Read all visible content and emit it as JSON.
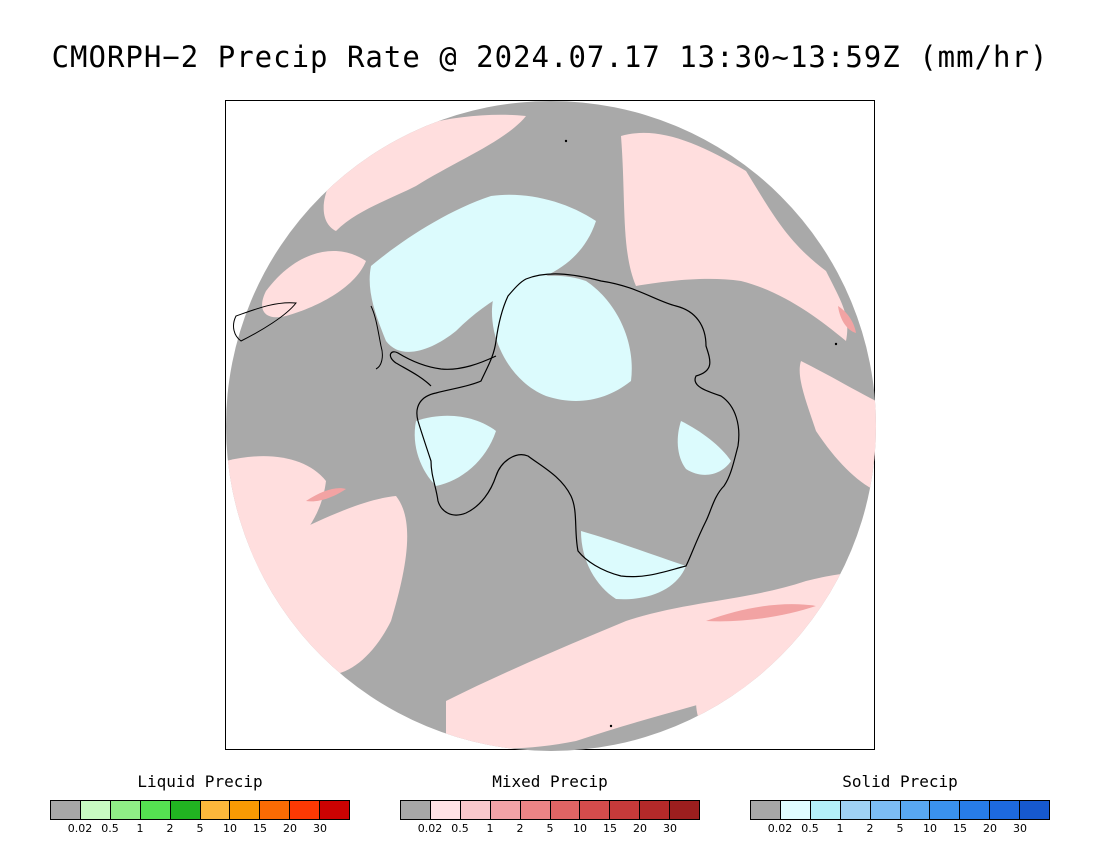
{
  "title": "CMORPH−2 Precip Rate @ 2024.07.17 13:30~13:59Z (mm/hr)",
  "map": {
    "projection": "south-polar-stereographic",
    "colors": {
      "no_precip": "#a9a9a9",
      "light_mixed": "#ffdede",
      "medium_mixed": "#f2a3a3",
      "light_solid": "#dcfbfd",
      "coastline": "#000000",
      "frame": "#000000"
    }
  },
  "legends": [
    {
      "title": "Liquid Precip",
      "colors": [
        "#a6a6a6",
        "#c8fbc1",
        "#8fef86",
        "#55e151",
        "#21b321",
        "#fcb73b",
        "#f99a03",
        "#fb6b03",
        "#fc3903",
        "#cb0202"
      ],
      "ticks": [
        "0.02",
        "0.5",
        "1",
        "2",
        "5",
        "10",
        "15",
        "20",
        "30"
      ]
    },
    {
      "title": "Mixed Precip",
      "colors": [
        "#a6a6a6",
        "#ffe3e6",
        "#fac8cc",
        "#f3a2a6",
        "#ec8485",
        "#e06464",
        "#d44c4c",
        "#c53a3a",
        "#b32929",
        "#9c1e1e"
      ],
      "ticks": [
        "0.02",
        "0.5",
        "1",
        "2",
        "5",
        "10",
        "15",
        "20",
        "30"
      ]
    },
    {
      "title": "Solid Precip",
      "colors": [
        "#a6a6a6",
        "#e0fdff",
        "#b3f0fa",
        "#9fd1f4",
        "#7cbcf4",
        "#58a6f1",
        "#3a92ee",
        "#277ce8",
        "#1d69df",
        "#1659cf"
      ],
      "ticks": [
        "0.02",
        "0.5",
        "1",
        "2",
        "5",
        "10",
        "15",
        "20",
        "30"
      ]
    }
  ]
}
